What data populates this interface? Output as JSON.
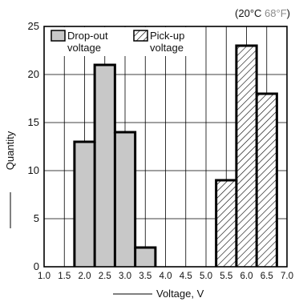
{
  "chart_data": {
    "type": "histogram",
    "title_prefix": "(20°C ",
    "title_highlight": "68°F",
    "title_suffix": ")",
    "xlabel": "Voltage, V",
    "ylabel": "Quantity",
    "xlim": [
      1.0,
      7.0
    ],
    "ylim": [
      0,
      25
    ],
    "x_ticks": [
      "1.0",
      "1.5",
      "2.0",
      "2.5",
      "3.0",
      "3.5",
      "4.0",
      "4.5",
      "5.0",
      "5.5",
      "6.0",
      "6.5",
      "7.0"
    ],
    "y_ticks": [
      "0",
      "5",
      "10",
      "15",
      "20",
      "25"
    ],
    "grid": true,
    "legend_position": "top-left",
    "series": [
      {
        "name": "Drop-out voltage",
        "legend_line1": "Drop-out",
        "legend_line2": "voltage",
        "fill": "#c8c8c8",
        "pattern": "solid",
        "bins": [
          {
            "x0": 1.75,
            "x1": 2.25,
            "count": 13
          },
          {
            "x0": 2.25,
            "x1": 2.75,
            "count": 21
          },
          {
            "x0": 2.75,
            "x1": 3.25,
            "count": 14
          },
          {
            "x0": 3.25,
            "x1": 3.75,
            "count": 2
          }
        ]
      },
      {
        "name": "Pick-up voltage",
        "legend_line1": "Pick-up",
        "legend_line2": "voltage",
        "fill": "#ffffff",
        "pattern": "hatched",
        "bins": [
          {
            "x0": 5.25,
            "x1": 5.75,
            "count": 9
          },
          {
            "x0": 5.75,
            "x1": 6.25,
            "count": 23
          },
          {
            "x0": 6.25,
            "x1": 6.75,
            "count": 18
          }
        ]
      }
    ],
    "colors": {
      "title_highlight": "#8c8c8c",
      "grid": "#000000",
      "outline": "#000000"
    }
  }
}
